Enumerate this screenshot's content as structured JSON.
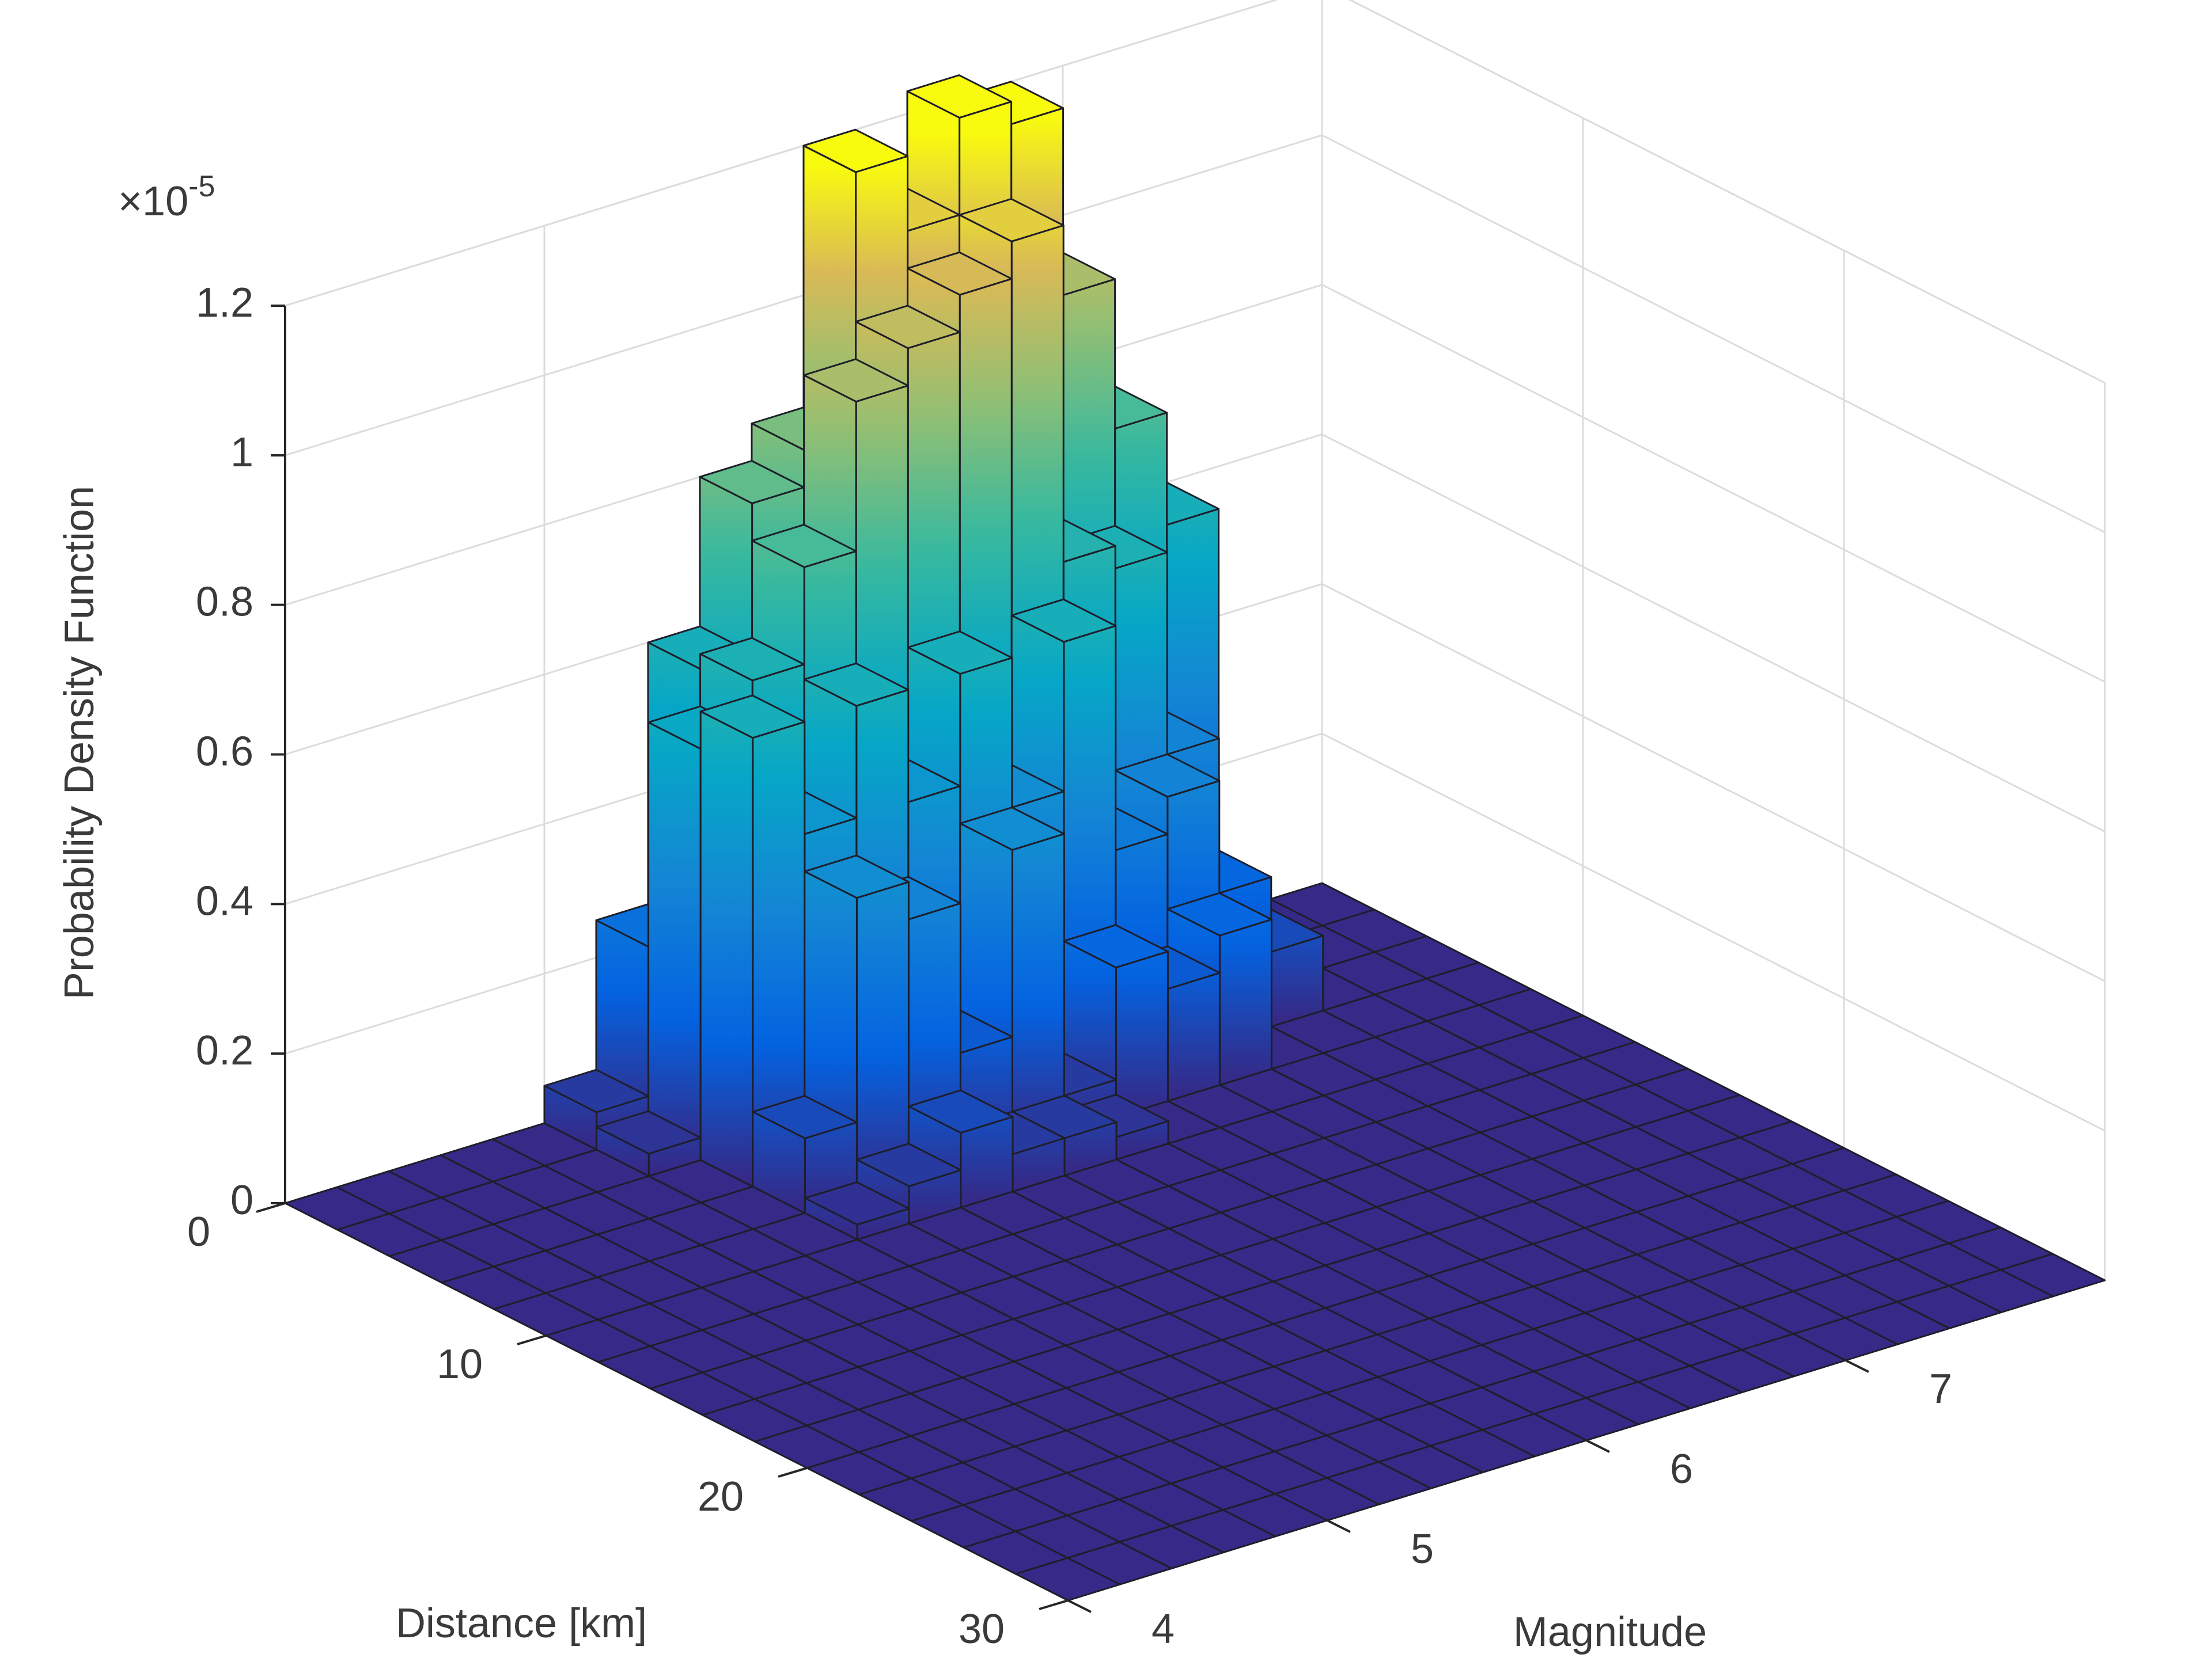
{
  "chart_data": {
    "type": "bar3",
    "xlabel": "Magnitude",
    "ylabel": "Distance [km]",
    "zlabel": "Probability Density Function",
    "z_multiplier": "×10",
    "z_exponent": "-5",
    "colormap": "parula",
    "grid": true,
    "xlim": [
      4,
      8
    ],
    "ylim": [
      0,
      30
    ],
    "zlim": [
      0,
      1.2
    ],
    "xticks": [
      4,
      5,
      6,
      7
    ],
    "yticks": [
      0,
      10,
      20,
      30
    ],
    "zticks": [
      0,
      0.2,
      0.4,
      0.6,
      0.8,
      1,
      1.2
    ],
    "x_bins": [
      4,
      4.2,
      4.4,
      4.6,
      4.8,
      5,
      5.2,
      5.4,
      5.6,
      5.8,
      6,
      6.2,
      6.4,
      6.6,
      6.8,
      7,
      7.2,
      7.4,
      7.6,
      7.8,
      8
    ],
    "y_bins": [
      0,
      2,
      4,
      6,
      8,
      10,
      12,
      14,
      16,
      18,
      20,
      22,
      24,
      26,
      28,
      30
    ],
    "values": [
      [
        0,
        0,
        0,
        0,
        0,
        0.05,
        0.25,
        0.6,
        0.8,
        0.85,
        1.2,
        1.1,
        1.23,
        1.2,
        0.95,
        0.75,
        0.6,
        0,
        0,
        0
      ],
      [
        0,
        0,
        0,
        0,
        0,
        0.03,
        0.55,
        0.62,
        0.75,
        0.95,
        1,
        1.05,
        1.1,
        0.65,
        0.62,
        0.35,
        0.03,
        0,
        0,
        0
      ],
      [
        0,
        0,
        0,
        0,
        0,
        0,
        0.6,
        0.45,
        0.6,
        0.45,
        0.6,
        0.4,
        0.6,
        0.3,
        0.35,
        0.2,
        0.1,
        0,
        0,
        0
      ],
      [
        0,
        0,
        0,
        0,
        0,
        0,
        0.1,
        0.4,
        0.35,
        0.15,
        0.4,
        0.05,
        0.2,
        0.15,
        0.2,
        0,
        0,
        0,
        0,
        0
      ],
      [
        0,
        0,
        0,
        0,
        0,
        0,
        0.02,
        0.05,
        0.1,
        0.05,
        0.05,
        0.03,
        0,
        0,
        0,
        0,
        0,
        0,
        0,
        0
      ],
      [
        0,
        0,
        0,
        0,
        0,
        0,
        0,
        0,
        0,
        0,
        0,
        0,
        0,
        0,
        0,
        0,
        0,
        0,
        0,
        0
      ],
      [
        0,
        0,
        0,
        0,
        0,
        0,
        0,
        0,
        0,
        0,
        0,
        0,
        0,
        0,
        0,
        0,
        0,
        0,
        0,
        0
      ],
      [
        0,
        0,
        0,
        0,
        0,
        0,
        0,
        0,
        0,
        0,
        0,
        0,
        0,
        0,
        0,
        0,
        0,
        0,
        0,
        0
      ],
      [
        0,
        0,
        0,
        0,
        0,
        0,
        0,
        0,
        0,
        0,
        0,
        0,
        0,
        0,
        0,
        0,
        0,
        0,
        0,
        0
      ],
      [
        0,
        0,
        0,
        0,
        0,
        0,
        0,
        0,
        0,
        0,
        0,
        0,
        0,
        0,
        0,
        0,
        0,
        0,
        0,
        0
      ],
      [
        0,
        0,
        0,
        0,
        0,
        0,
        0,
        0,
        0,
        0,
        0,
        0,
        0,
        0,
        0,
        0,
        0,
        0,
        0,
        0
      ],
      [
        0,
        0,
        0,
        0,
        0,
        0,
        0,
        0,
        0,
        0,
        0,
        0,
        0,
        0,
        0,
        0,
        0,
        0,
        0,
        0
      ],
      [
        0,
        0,
        0,
        0,
        0,
        0,
        0,
        0,
        0,
        0,
        0,
        0,
        0,
        0,
        0,
        0,
        0,
        0,
        0,
        0
      ],
      [
        0,
        0,
        0,
        0,
        0,
        0,
        0,
        0,
        0,
        0,
        0,
        0,
        0,
        0,
        0,
        0,
        0,
        0,
        0,
        0
      ],
      [
        0,
        0,
        0,
        0,
        0,
        0,
        0,
        0,
        0,
        0,
        0,
        0,
        0,
        0,
        0,
        0,
        0,
        0,
        0,
        0
      ]
    ]
  }
}
